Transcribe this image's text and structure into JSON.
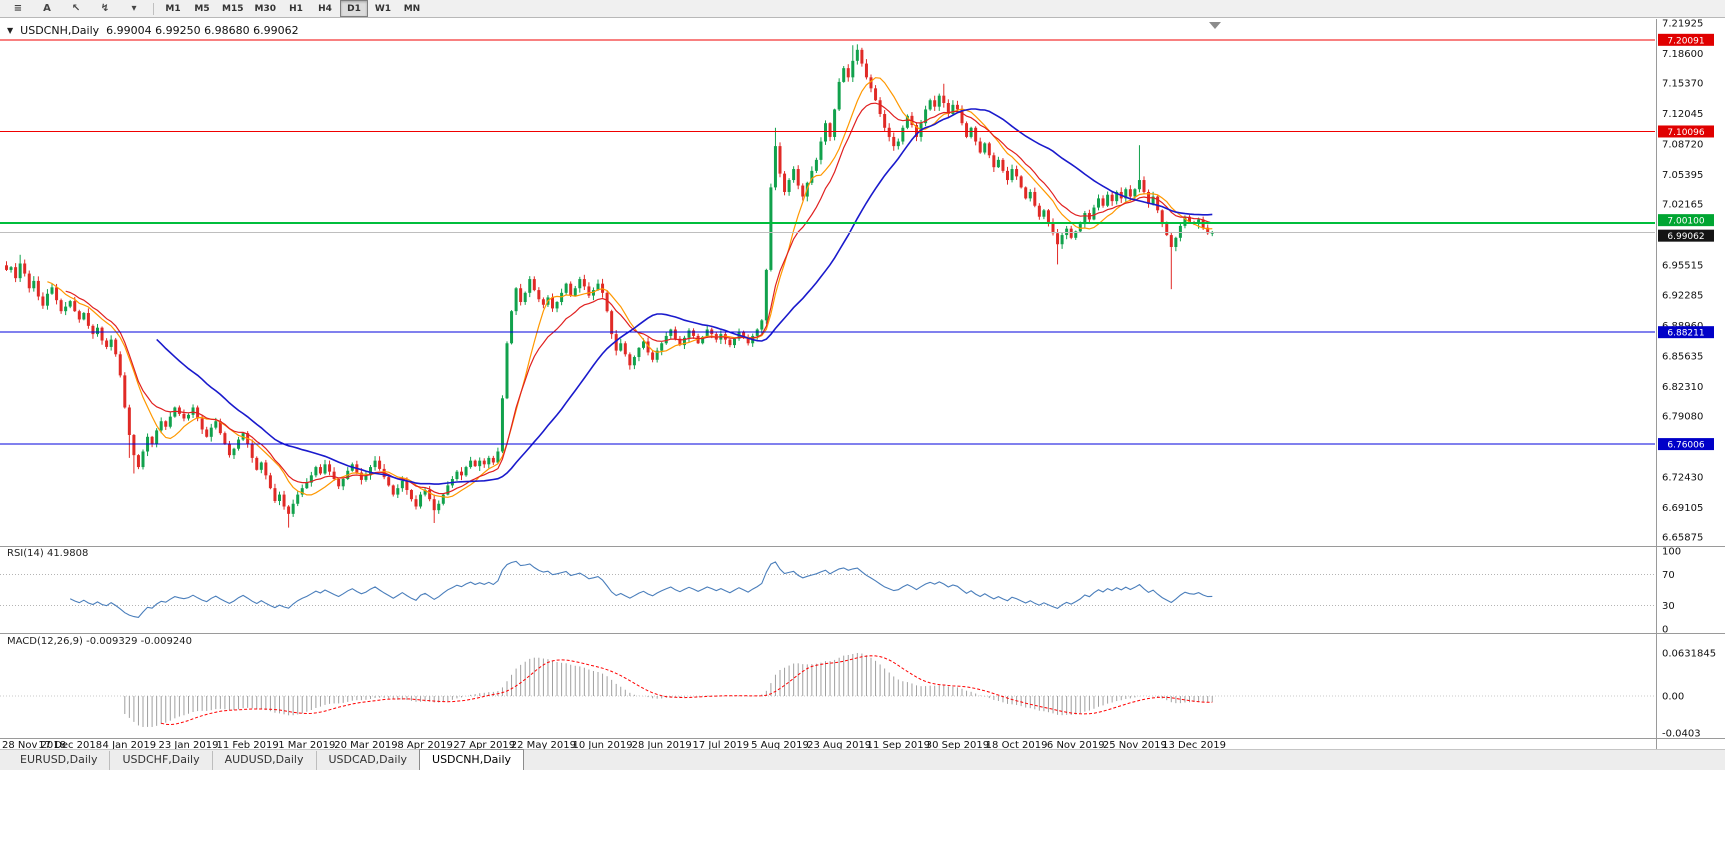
{
  "toolbar": {
    "icon_buttons": [
      {
        "name": "charts-menu-icon",
        "glyph": "≡"
      },
      {
        "name": "font-icon",
        "glyph": "A"
      },
      {
        "name": "cursor-icon",
        "glyph": "↖"
      },
      {
        "name": "indicator-zigzag-icon",
        "glyph": "↯"
      },
      {
        "name": "dropdown-caret-icon",
        "glyph": "▾"
      }
    ],
    "timeframes": [
      "M1",
      "M5",
      "M15",
      "M30",
      "H1",
      "H4",
      "D1",
      "W1",
      "MN"
    ],
    "active_timeframe": "D1"
  },
  "chart": {
    "symbol_label": "USDCNH,Daily",
    "dropdown_glyph": "▼",
    "ohlc_line": "6.99004 6.99250 6.98680 6.99062",
    "price_axis": {
      "max": 7.21925,
      "min": 6.65875,
      "ticks": [
        7.21925,
        7.186,
        7.1537,
        7.12045,
        7.0872,
        7.05395,
        7.02165,
        6.98835,
        6.95515,
        6.92285,
        6.8896,
        6.85635,
        6.8231,
        6.7908,
        6.75755,
        6.7243,
        6.69105,
        6.65875
      ]
    },
    "h_lines": [
      {
        "value": 7.20091,
        "label": "7.20091",
        "line_color": "#F00000",
        "badge_color": "#E00000",
        "width": 1,
        "offset": 0
      },
      {
        "value": 7.10096,
        "label": "7.10096",
        "line_color": "#F00000",
        "badge_color": "#E00000",
        "width": 1,
        "offset": 0
      },
      {
        "value": 7.001,
        "label": "7.00100",
        "line_color": "#00BE3C",
        "badge_color": "#00A532",
        "width": 2,
        "offset": -3
      },
      {
        "value": 6.88211,
        "label": "6.88211",
        "line_color": "#0000DC",
        "badge_color": "#0000C8",
        "width": 1,
        "offset": 0
      },
      {
        "value": 6.76006,
        "label": "6.76006",
        "line_color": "#0000DC",
        "badge_color": "#0000C8",
        "width": 1,
        "offset": 0
      },
      {
        "value": 6.99062,
        "label": "6.99062",
        "line_color": "#BEBEBE",
        "badge_color": "#141414",
        "width": 1,
        "offset": 3
      }
    ]
  },
  "chart_data": {
    "type": "candlestick",
    "symbol": "USDCNH",
    "timeframe": "Daily",
    "x_labels": [
      "28 Nov 2018",
      "17 Dec 2018",
      "4 Jan 2019",
      "23 Jan 2019",
      "11 Feb 2019",
      "1 Mar 2019",
      "20 Mar 2019",
      "8 Apr 2019",
      "27 Apr 2019",
      "22 May 2019",
      "10 Jun 2019",
      "28 Jun 2019",
      "17 Jul 2019",
      "5 Aug 2019",
      "23 Aug 2019",
      "11 Sep 2019",
      "30 Sep 2019",
      "18 Oct 2019",
      "6 Nov 2019",
      "25 Nov 2019",
      "13 Dec 2019"
    ],
    "candles_per_label_gap": 13,
    "closes": [
      6.95,
      6.953,
      6.941,
      6.957,
      6.946,
      6.93,
      6.938,
      6.921,
      6.911,
      6.924,
      6.931,
      6.917,
      6.905,
      6.91,
      6.916,
      6.905,
      6.896,
      6.903,
      6.889,
      6.88,
      6.887,
      6.873,
      6.866,
      6.874,
      6.858,
      6.835,
      6.8,
      6.77,
      6.748,
      6.735,
      6.752,
      6.768,
      6.76,
      6.775,
      6.785,
      6.779,
      6.79,
      6.8,
      6.793,
      6.788,
      6.792,
      6.8,
      6.788,
      6.776,
      6.768,
      6.778,
      6.785,
      6.772,
      6.76,
      6.748,
      6.755,
      6.765,
      6.772,
      6.76,
      6.745,
      6.732,
      6.74,
      6.726,
      6.712,
      6.698,
      6.705,
      6.692,
      6.684,
      6.695,
      6.705,
      6.712,
      6.718,
      6.726,
      6.735,
      6.728,
      6.738,
      6.73,
      6.722,
      6.714,
      6.722,
      6.731,
      6.738,
      6.729,
      6.721,
      6.726,
      6.735,
      6.742,
      6.733,
      6.724,
      6.715,
      6.705,
      6.712,
      6.72,
      6.71,
      6.7,
      6.692,
      6.705,
      6.71,
      6.7,
      6.688,
      6.695,
      6.705,
      6.715,
      6.722,
      6.73,
      6.726,
      6.735,
      6.742,
      6.736,
      6.742,
      6.738,
      6.745,
      6.74,
      6.752,
      6.81,
      6.87,
      6.905,
      6.93,
      6.915,
      6.925,
      6.94,
      6.928,
      6.918,
      6.912,
      6.92,
      6.908,
      6.915,
      6.925,
      6.935,
      6.922,
      6.93,
      6.94,
      6.932,
      6.922,
      6.928,
      6.935,
      6.925,
      6.905,
      6.88,
      6.862,
      6.87,
      6.858,
      6.846,
      6.855,
      6.865,
      6.872,
      6.86,
      6.852,
      6.862,
      6.87,
      6.878,
      6.885,
      6.875,
      6.868,
      6.876,
      6.884,
      6.878,
      6.87,
      6.877,
      6.885,
      6.88,
      6.874,
      6.88,
      6.874,
      6.868,
      6.875,
      6.882,
      6.876,
      6.87,
      6.878,
      6.885,
      6.895,
      6.95,
      7.04,
      7.085,
      7.055,
      7.035,
      7.048,
      7.06,
      7.042,
      7.03,
      7.045,
      7.058,
      7.07,
      7.09,
      7.11,
      7.095,
      7.125,
      7.155,
      7.17,
      7.16,
      7.178,
      7.19,
      7.175,
      7.16,
      7.148,
      7.135,
      7.12,
      7.105,
      7.095,
      7.085,
      7.09,
      7.105,
      7.118,
      7.108,
      7.095,
      7.11,
      7.125,
      7.135,
      7.128,
      7.14,
      7.132,
      7.12,
      7.13,
      7.125,
      7.11,
      7.095,
      7.105,
      7.09,
      7.078,
      7.088,
      7.075,
      7.062,
      7.07,
      7.058,
      7.048,
      7.06,
      7.052,
      7.04,
      7.028,
      7.035,
      7.02,
      7.008,
      7.015,
      7.002,
      6.99,
      6.978,
      6.988,
      6.995,
      6.985,
      6.992,
      7.0,
      7.012,
      7.005,
      7.018,
      7.028,
      7.02,
      7.032,
      7.025,
      7.035,
      7.028,
      7.038,
      7.03,
      7.038,
      7.048,
      7.035,
      7.022,
      7.03,
      7.015,
      7.0,
      6.988,
      6.975,
      6.985,
      6.998,
      7.008,
      7.002,
      7.0,
      7.005,
      6.996,
      6.99,
      6.9906
    ],
    "spike_highs": [
      {
        "i": 3,
        "v": 6.9665
      },
      {
        "i": 169,
        "v": 7.105
      },
      {
        "i": 186,
        "v": 7.195
      },
      {
        "i": 187,
        "v": 7.196
      },
      {
        "i": 206,
        "v": 7.153
      },
      {
        "i": 249,
        "v": 7.086
      },
      {
        "i": 265,
        "v": 6.9925
      }
    ],
    "spike_lows": [
      {
        "i": 27,
        "v": 6.745
      },
      {
        "i": 28,
        "v": 6.728
      },
      {
        "i": 62,
        "v": 6.669
      },
      {
        "i": 94,
        "v": 6.674
      },
      {
        "i": 231,
        "v": 6.956
      },
      {
        "i": 256,
        "v": 6.929
      },
      {
        "i": 265,
        "v": 6.9868
      }
    ],
    "up_color": "#11A14C",
    "down_color": "#E02A26",
    "moving_averages": [
      {
        "name": "fast-ma",
        "method": "sma",
        "period": 10,
        "color": "#FF9800"
      },
      {
        "name": "mid-ma",
        "method": "ema",
        "period": 14,
        "color": "#E02020"
      },
      {
        "name": "slow-ma",
        "method": "sma",
        "period": 34,
        "color": "#1A1ACC"
      }
    ],
    "rsi": {
      "label": "RSI(14) 41.9808",
      "period": 14,
      "color": "#4A7EBB",
      "levels": [
        100,
        70,
        30,
        0
      ]
    },
    "macd": {
      "label": "MACD(12,26,9) -0.009329 -0.009240",
      "fast": 12,
      "slow": 26,
      "signal": 9,
      "hist_color": "#A0A0A0",
      "signal_color": "#FF0000",
      "axis_labels": [
        "0.0631845",
        "0.00",
        "-0.0403"
      ]
    }
  },
  "tabs": {
    "items": [
      "EURUSD,Daily",
      "USDCHF,Daily",
      "AUDUSD,Daily",
      "USDCAD,Daily",
      "USDCNH,Daily"
    ],
    "active_index": 4
  }
}
